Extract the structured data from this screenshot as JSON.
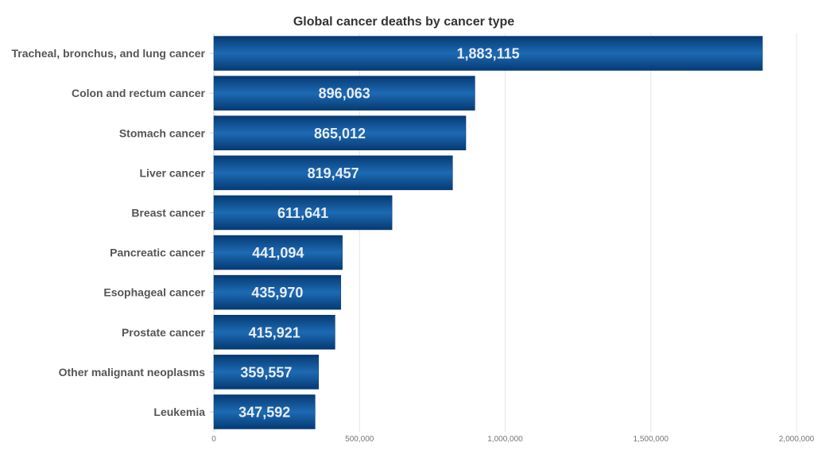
{
  "chart_data": {
    "type": "bar",
    "orientation": "horizontal",
    "title": "Global cancer deaths by cancer type",
    "xlabel": "",
    "ylabel": "",
    "categories": [
      "Tracheal, bronchus, and lung cancer",
      "Colon and rectum cancer",
      "Stomach cancer",
      "Liver cancer",
      "Breast cancer",
      "Pancreatic cancer",
      "Esophageal cancer",
      "Prostate cancer",
      "Other malignant neoplasms",
      "Leukemia"
    ],
    "values": [
      1883115,
      896063,
      865012,
      819457,
      611641,
      441094,
      435970,
      415921,
      359557,
      347592
    ],
    "value_labels": [
      "1,883,115",
      "896,063",
      "865,012",
      "819,457",
      "611,641",
      "441,094",
      "435,970",
      "415,921",
      "359,557",
      "347,592"
    ],
    "xlim": [
      0,
      2000000
    ],
    "x_ticks": [
      0,
      500000,
      1000000,
      1500000,
      2000000
    ],
    "x_tick_labels": [
      "0",
      "500,000",
      "1,000,000",
      "1,500,000",
      "2,000,000"
    ],
    "grid": "vertical",
    "legend": "none",
    "bar_color": "#0a4a8c",
    "bar_color_dark": "#063a73",
    "bar_color_light": "#1d6ab3",
    "value_label_color": "#e8edf4",
    "category_label_color": "#555555",
    "title_color": "#333333",
    "tick_label_color": "#777777",
    "grid_color": "#e6e6e6",
    "axis_color": "#cccccc"
  }
}
